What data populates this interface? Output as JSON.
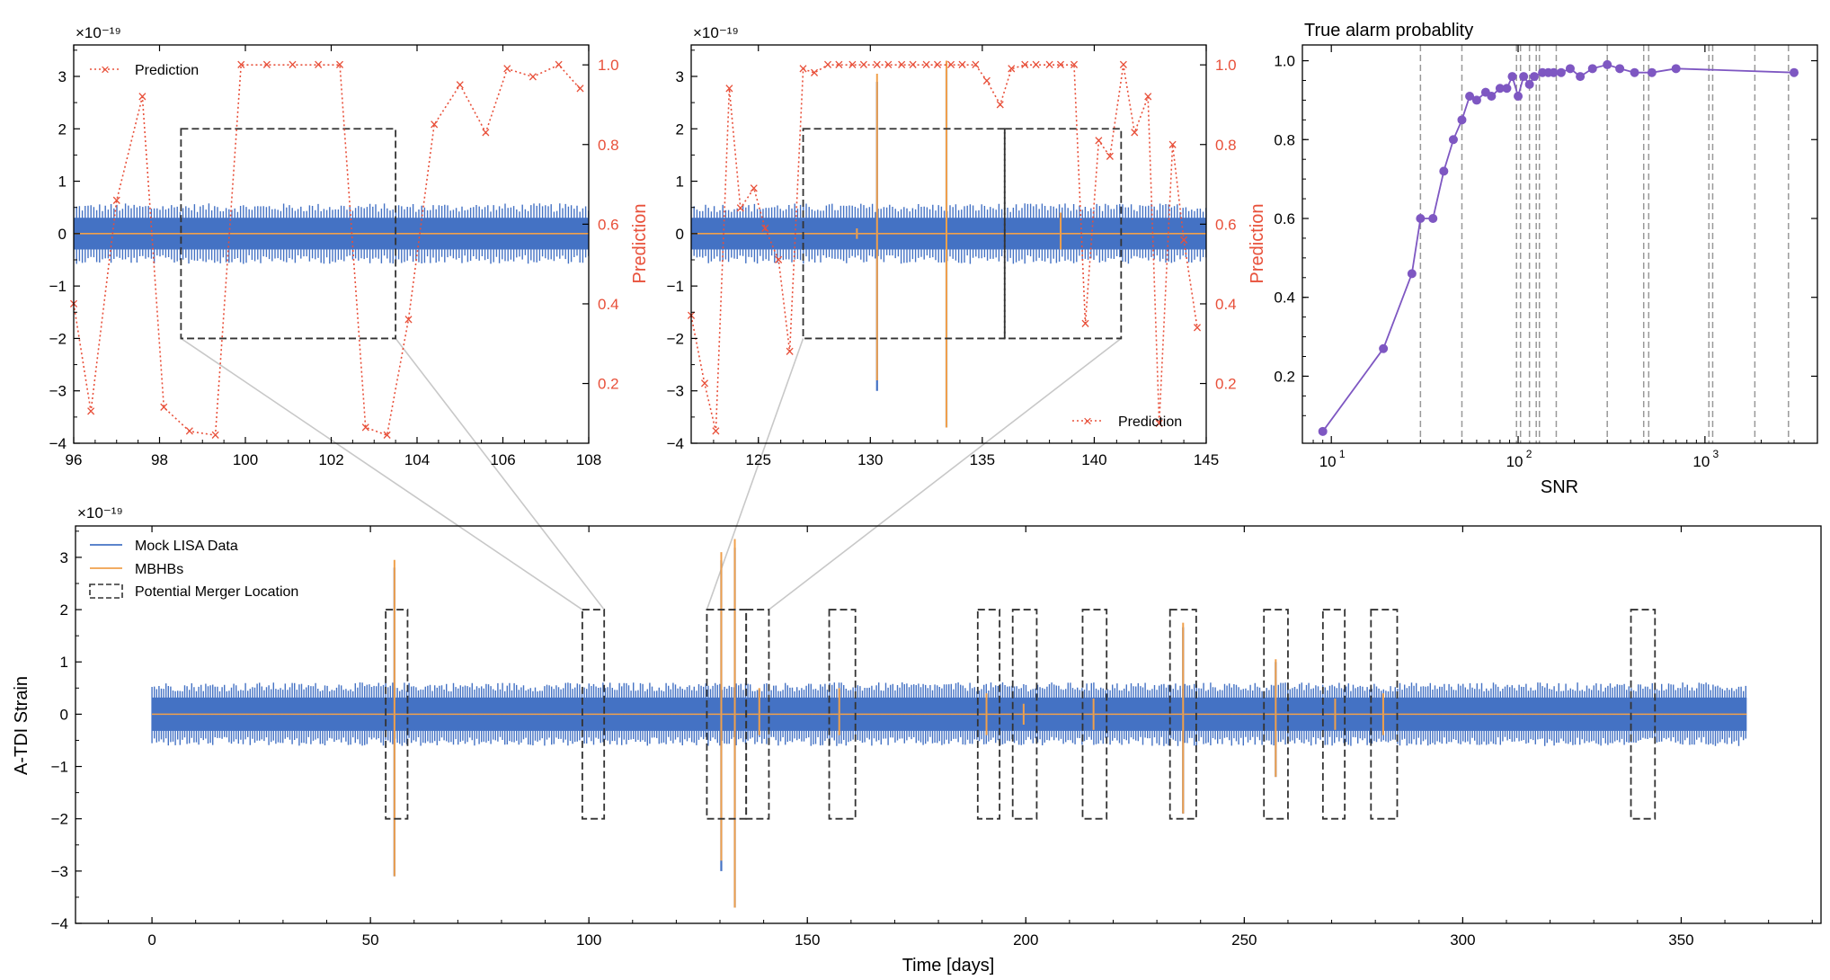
{
  "colors": {
    "data": "#4472c4",
    "mbhb": "#f0a04b",
    "prediction": "#e8503a",
    "probability": "#7e57c2",
    "box": "#333333",
    "snr_lines": "#999999",
    "connector": "#c8c8c8"
  },
  "chart_data": [
    {
      "id": "zoom1",
      "type": "line",
      "title": "",
      "xlabel": "",
      "ylabel": "",
      "ylabel_right": "Prediction",
      "exponent": "×10⁻¹⁹",
      "xlim": [
        96,
        108
      ],
      "ylim": [
        -4,
        3.6
      ],
      "ylim_right": [
        0.05,
        1.05
      ],
      "xticks": [
        "96",
        "98",
        "100",
        "102",
        "104",
        "106",
        "108"
      ],
      "yticks": [
        "3",
        "2",
        "1",
        "0",
        "−1",
        "−2",
        "−3",
        "−4"
      ],
      "yticks_right": [
        "1.0",
        "0.8",
        "0.6",
        "0.4",
        "0.2"
      ],
      "legend": [
        "Prediction"
      ],
      "legend_position": "top-left",
      "noise_amplitude": 0.55,
      "boxes": [
        [
          98.5,
          103.5,
          -2,
          2
        ]
      ],
      "spikes": [],
      "prediction": {
        "x": [
          96.0,
          96.4,
          97.0,
          97.6,
          98.1,
          98.7,
          99.3,
          99.9,
          100.5,
          101.1,
          101.7,
          102.2,
          102.8,
          103.3,
          103.8,
          104.4,
          105.0,
          105.6,
          106.1,
          106.7,
          107.3,
          107.8
        ],
        "y": [
          0.4,
          0.13,
          0.66,
          0.92,
          0.14,
          0.08,
          0.07,
          1.0,
          1.0,
          1.0,
          1.0,
          1.0,
          0.09,
          0.07,
          0.36,
          0.85,
          0.95,
          0.83,
          0.99,
          0.97,
          1.0,
          0.94
        ]
      }
    },
    {
      "id": "zoom2",
      "type": "line",
      "title": "",
      "xlabel": "",
      "ylabel": "",
      "ylabel_right": "Prediction",
      "exponent": "×10⁻¹⁹",
      "xlim": [
        122,
        145
      ],
      "ylim": [
        -4,
        3.6
      ],
      "ylim_right": [
        0.05,
        1.05
      ],
      "xticks": [
        "125",
        "130",
        "135",
        "140",
        "145"
      ],
      "yticks": [
        "3",
        "2",
        "1",
        "0",
        "−1",
        "−2",
        "−3",
        "−4"
      ],
      "yticks_right": [
        "1.0",
        "0.8",
        "0.6",
        "0.4",
        "0.2"
      ],
      "legend": [
        "Prediction"
      ],
      "legend_position": "bottom-right",
      "noise_amplitude": 0.55,
      "boxes": [
        [
          127,
          136,
          -2,
          2
        ],
        [
          136,
          141.2,
          -2,
          2
        ]
      ],
      "spikes": [
        {
          "x": 130.3,
          "up": 3.05,
          "down": -2.8,
          "blue_down": -3.0
        },
        {
          "x": 133.4,
          "up": 3.3,
          "down": -3.7,
          "blue_down": -3.7
        },
        {
          "x": 138.5,
          "up": 0.4,
          "down": -0.3,
          "blue_down": -0.3
        },
        {
          "x": 129.4,
          "up": 0.1,
          "down": -0.1,
          "blue_down": -0.1
        }
      ],
      "prediction": {
        "x": [
          122.0,
          122.6,
          123.1,
          123.7,
          124.2,
          124.8,
          125.3,
          125.9,
          126.4,
          127.0,
          127.5,
          128.1,
          128.6,
          129.2,
          129.7,
          130.3,
          130.8,
          131.4,
          131.9,
          132.5,
          133.0,
          133.6,
          134.1,
          134.7,
          135.2,
          135.8,
          136.3,
          136.9,
          137.4,
          138.0,
          138.5,
          139.1,
          139.6,
          140.2,
          140.7,
          141.3,
          141.8,
          142.4,
          142.9,
          143.5,
          144.0,
          144.6
        ],
        "y": [
          0.37,
          0.2,
          0.08,
          0.94,
          0.64,
          0.69,
          0.59,
          0.51,
          0.28,
          0.99,
          0.98,
          1.0,
          1.0,
          1.0,
          1.0,
          1.0,
          1.0,
          1.0,
          1.0,
          1.0,
          1.0,
          1.0,
          1.0,
          1.0,
          0.96,
          0.9,
          0.99,
          1.0,
          1.0,
          1.0,
          1.0,
          1.0,
          0.35,
          0.81,
          0.77,
          1.0,
          0.83,
          0.92,
          0.1,
          0.8,
          0.56,
          0.34
        ]
      }
    },
    {
      "id": "alarm",
      "type": "line",
      "title": "True alarm probablity",
      "xlabel": "SNR",
      "ylabel": "",
      "xscale": "log",
      "xlim": [
        7,
        4000
      ],
      "ylim": [
        0.03,
        1.04
      ],
      "xticks": [
        {
          "base": "10",
          "exp": "1"
        },
        {
          "base": "10",
          "exp": "2"
        },
        {
          "base": "10",
          "exp": "3"
        }
      ],
      "yticks": [
        "1.0",
        "0.8",
        "0.6",
        "0.4",
        "0.2"
      ],
      "snr_markers": [
        30,
        50,
        98,
        103,
        115,
        125,
        130,
        160,
        300,
        470,
        500,
        1050,
        1100,
        1850,
        2800
      ],
      "series": [
        {
          "name": "True alarm probability",
          "x": [
            9,
            19,
            27,
            30,
            35,
            40,
            45,
            50,
            55,
            60,
            67,
            72,
            80,
            87,
            93,
            100,
            107,
            115,
            122,
            135,
            145,
            155,
            170,
            190,
            215,
            250,
            300,
            350,
            420,
            520,
            700,
            3000
          ],
          "y": [
            0.06,
            0.27,
            0.46,
            0.6,
            0.6,
            0.72,
            0.8,
            0.85,
            0.91,
            0.9,
            0.92,
            0.91,
            0.93,
            0.93,
            0.96,
            0.91,
            0.96,
            0.94,
            0.96,
            0.97,
            0.97,
            0.97,
            0.97,
            0.98,
            0.96,
            0.98,
            0.99,
            0.98,
            0.97,
            0.97,
            0.98,
            0.97
          ]
        }
      ]
    },
    {
      "id": "main",
      "type": "line",
      "title": "",
      "xlabel": "Time [days]",
      "ylabel": "A-TDI Strain",
      "exponent": "×10⁻¹⁹",
      "xlim": [
        -17.5,
        382
      ],
      "ylim": [
        -4,
        3.6
      ],
      "xticks": [
        "0",
        "50",
        "100",
        "150",
        "200",
        "250",
        "300",
        "350"
      ],
      "yticks": [
        "3",
        "2",
        "1",
        "0",
        "−1",
        "−2",
        "−3",
        "−4"
      ],
      "legend": [
        "Mock LISA Data",
        "MBHBs",
        "Potential Merger Location"
      ],
      "legend_position": "top-left",
      "noise_amplitude": 0.58,
      "time_range": [
        0,
        365
      ],
      "boxes": [
        [
          53.5,
          58.5,
          -2,
          2
        ],
        [
          98.5,
          103.5,
          -2,
          2
        ],
        [
          127,
          136,
          -2,
          2
        ],
        [
          136,
          141.2,
          -2,
          2
        ],
        [
          155,
          161,
          -2,
          2
        ],
        [
          189,
          194,
          -2,
          2
        ],
        [
          197,
          202.5,
          -2,
          2
        ],
        [
          213,
          218.5,
          -2,
          2
        ],
        [
          233,
          239,
          -2,
          2
        ],
        [
          254.5,
          260,
          -2,
          2
        ],
        [
          268,
          273,
          -2,
          2
        ],
        [
          279,
          285,
          -2,
          2
        ],
        [
          338.5,
          344,
          -2,
          2
        ]
      ],
      "spikes": [
        {
          "x": 55.5,
          "up": 2.95,
          "down": -3.1,
          "blue_down": -3.1
        },
        {
          "x": 130.3,
          "up": 3.1,
          "down": -2.8,
          "blue_down": -3.0
        },
        {
          "x": 133.4,
          "up": 3.35,
          "down": -3.7,
          "blue_down": -3.7
        },
        {
          "x": 139.0,
          "up": 0.5,
          "down": -0.4,
          "blue_down": -0.4
        },
        {
          "x": 157.3,
          "up": 0.5,
          "down": -0.4,
          "blue_down": -0.4
        },
        {
          "x": 191.0,
          "up": 0.4,
          "down": -0.4,
          "blue_down": -0.4
        },
        {
          "x": 199.5,
          "up": 0.2,
          "down": -0.2,
          "blue_down": -0.2
        },
        {
          "x": 215.5,
          "up": 0.3,
          "down": -0.3,
          "blue_down": -0.3
        },
        {
          "x": 236.0,
          "up": 1.75,
          "down": -1.9,
          "blue_down": -1.9
        },
        {
          "x": 257.2,
          "up": 1.05,
          "down": -1.2,
          "blue_down": -1.2
        },
        {
          "x": 270.8,
          "up": 0.3,
          "down": -0.3,
          "blue_down": -0.3
        },
        {
          "x": 281.8,
          "up": 0.4,
          "down": -0.4,
          "blue_down": -0.4
        }
      ]
    }
  ]
}
